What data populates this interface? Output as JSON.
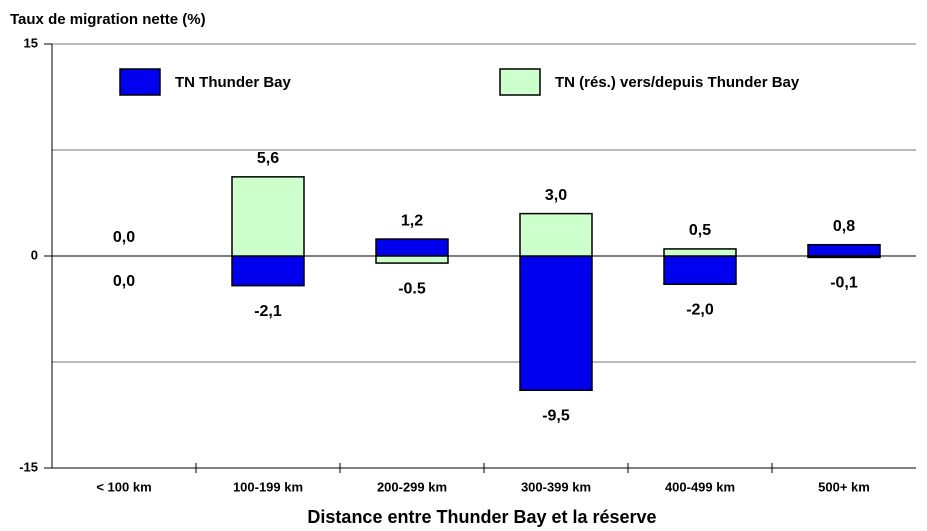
{
  "chart_data": {
    "type": "bar",
    "title": "Taux de migration nette (%)",
    "x_label": "Distance entre Thunder Bay et la réserve",
    "categories": [
      "< 100 km",
      "100-199 km",
      "200-299 km",
      "300-399 km",
      "400-499 km",
      "500+ km"
    ],
    "series": [
      {
        "name": "TN Thunder Bay",
        "color": "#0000ee",
        "values": [
          0.0,
          -2.1,
          1.2,
          -9.5,
          -2.0,
          0.8
        ],
        "value_labels": [
          "0,0",
          "-2,1",
          "1,2",
          "-9,5",
          "-2,0",
          "0,8"
        ]
      },
      {
        "name": "TN (rés.) vers/depuis Thunder Bay",
        "color": "#ccffcc",
        "values": [
          0.0,
          5.6,
          -0.5,
          3.0,
          0.5,
          -0.1
        ],
        "value_labels": [
          "0,0",
          "5,6",
          "-0.5",
          "3,0",
          "0,5",
          "-0,1"
        ]
      }
    ],
    "ylim": [
      -15,
      15
    ],
    "yticks": [
      -15,
      0,
      15
    ],
    "ygrid": [
      -7.5,
      7.5
    ],
    "grid": true,
    "legend": "top"
  }
}
